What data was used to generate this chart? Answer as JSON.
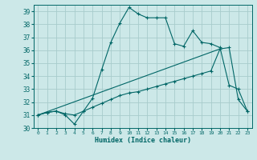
{
  "xlabel": "Humidex (Indice chaleur)",
  "bg_color": "#cce8e8",
  "grid_color": "#a8cccc",
  "line_color": "#006666",
  "xlim": [
    -0.5,
    23.5
  ],
  "ylim": [
    30,
    39.5
  ],
  "yticks": [
    30,
    31,
    32,
    33,
    34,
    35,
    36,
    37,
    38,
    39
  ],
  "xticks": [
    0,
    1,
    2,
    3,
    4,
    5,
    6,
    7,
    8,
    9,
    10,
    11,
    12,
    13,
    14,
    15,
    16,
    17,
    18,
    19,
    20,
    21,
    22,
    23
  ],
  "series1_x": [
    0,
    1,
    2,
    3,
    4,
    5,
    6,
    7,
    8,
    9,
    10,
    11,
    12,
    13,
    14,
    15,
    16,
    17,
    18,
    19,
    20,
    21,
    22,
    23
  ],
  "series1_y": [
    31.0,
    31.2,
    31.3,
    31.0,
    30.3,
    31.3,
    32.3,
    34.5,
    36.6,
    38.1,
    39.3,
    38.8,
    38.5,
    38.5,
    38.5,
    36.5,
    36.3,
    37.5,
    36.6,
    36.5,
    36.2,
    33.3,
    33.0,
    31.3
  ],
  "series2_x": [
    0,
    1,
    2,
    3,
    4,
    5,
    6,
    7,
    8,
    9,
    10,
    11,
    12,
    13,
    14,
    15,
    16,
    17,
    18,
    19,
    20,
    21,
    22,
    23
  ],
  "series2_y": [
    31.0,
    31.2,
    31.3,
    31.1,
    31.0,
    31.3,
    31.6,
    31.9,
    32.2,
    32.5,
    32.7,
    32.8,
    33.0,
    33.2,
    33.4,
    33.6,
    33.8,
    34.0,
    34.2,
    34.4,
    36.1,
    36.2,
    32.2,
    31.3
  ],
  "series3_x": [
    0,
    20
  ],
  "series3_y": [
    31.0,
    36.1
  ]
}
